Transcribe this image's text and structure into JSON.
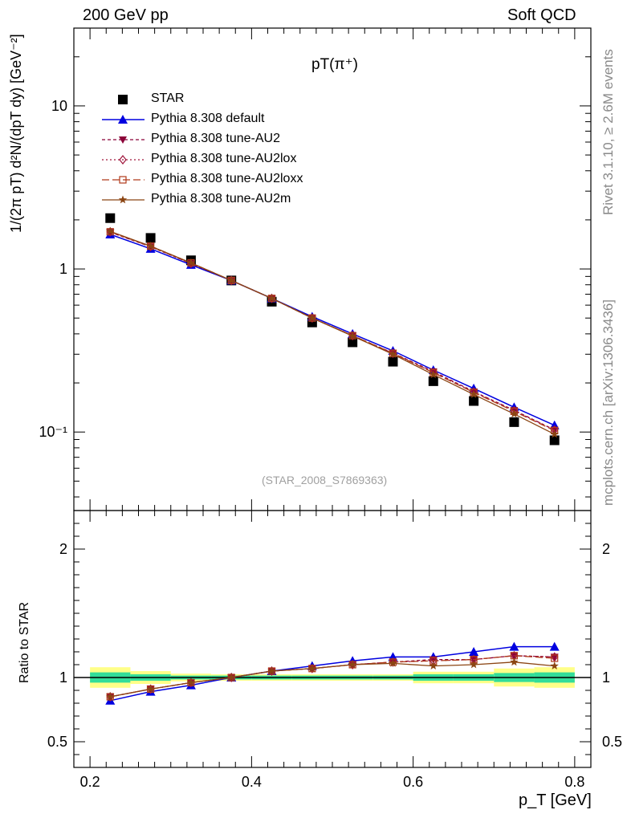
{
  "header": {
    "left": "200 GeV pp",
    "right": "Soft QCD"
  },
  "side_text": {
    "rivet": "Rivet 3.1.10, ≥ 2.6M events",
    "mcplots": "mcplots.cern.ch [arXiv:1306.3436]"
  },
  "plot_title": "pT(π⁺)",
  "watermark": "(STAR_2008_S7869363)",
  "ylabel_main": "1/(2π pT) d²N/(dpT dy) [GeV⁻²]",
  "ylabel_ratio": "Ratio to STAR",
  "xlabel": "p_T [GeV]",
  "colors": {
    "star": "#000000",
    "default": "#0000e0",
    "au2": "#8b0038",
    "au2lox": "#a0163c",
    "au2loxx": "#b03a1a",
    "au2m": "#8b4513",
    "band_inner": "#33dd99",
    "band_outer": "#ffff88"
  },
  "chart_data": [
    {
      "type": "line",
      "panel": "main",
      "y_scale": "log",
      "xlim": [
        0.18,
        0.82
      ],
      "ylim": [
        0.033,
        30
      ],
      "x_ticks": [
        0.2,
        0.4,
        0.6,
        0.8
      ],
      "y_ticks": [
        "10⁻¹",
        "1",
        "10"
      ],
      "legend_placement": "top-left",
      "x": [
        0.225,
        0.275,
        0.325,
        0.375,
        0.425,
        0.475,
        0.525,
        0.575,
        0.625,
        0.675,
        0.725,
        0.775
      ],
      "series": [
        {
          "name": "STAR",
          "marker": "square",
          "values": [
            2.05,
            1.55,
            1.13,
            0.85,
            0.63,
            0.47,
            0.355,
            0.27,
            0.205,
            0.155,
            0.115,
            0.089
          ],
          "errors": [
            0.08,
            0.06,
            0.04,
            0.03,
            0.02,
            0.015,
            0.012,
            0.01,
            0.008,
            0.007,
            0.006,
            0.005
          ]
        },
        {
          "name": "Pythia 8.308 default",
          "marker": "triangle-up",
          "values": [
            1.63,
            1.33,
            1.06,
            0.85,
            0.66,
            0.51,
            0.4,
            0.315,
            0.24,
            0.185,
            0.142,
            0.11
          ]
        },
        {
          "name": "Pythia 8.308 tune-AU2",
          "marker": "triangle-down",
          "values": [
            1.68,
            1.37,
            1.08,
            0.85,
            0.66,
            0.5,
            0.39,
            0.305,
            0.235,
            0.177,
            0.136,
            0.103
          ]
        },
        {
          "name": "Pythia 8.308 tune-AU2lox",
          "marker": "diamond",
          "values": [
            1.69,
            1.37,
            1.08,
            0.85,
            0.66,
            0.5,
            0.39,
            0.304,
            0.232,
            0.176,
            0.135,
            0.103
          ]
        },
        {
          "name": "Pythia 8.308 tune-AU2loxx",
          "marker": "open-square",
          "values": [
            1.69,
            1.38,
            1.09,
            0.85,
            0.66,
            0.5,
            0.39,
            0.304,
            0.231,
            0.175,
            0.134,
            0.102
          ]
        },
        {
          "name": "Pythia 8.308 tune-AU2m",
          "marker": "star",
          "values": [
            1.7,
            1.38,
            1.09,
            0.85,
            0.66,
            0.5,
            0.388,
            0.3,
            0.225,
            0.17,
            0.129,
            0.097
          ]
        }
      ]
    },
    {
      "type": "line",
      "panel": "ratio",
      "xlim": [
        0.18,
        0.82
      ],
      "ylim": [
        0.3,
        2.3
      ],
      "x_ticks": [
        0.2,
        0.4,
        0.6,
        0.8
      ],
      "y_ticks": [
        0.5,
        1,
        2
      ],
      "x": [
        0.225,
        0.275,
        0.325,
        0.375,
        0.425,
        0.475,
        0.525,
        0.575,
        0.625,
        0.675,
        0.725,
        0.775
      ],
      "band": {
        "edges": [
          0.2,
          0.25,
          0.3,
          0.35,
          0.4,
          0.45,
          0.5,
          0.55,
          0.6,
          0.65,
          0.7,
          0.75,
          0.8
        ],
        "inner": [
          0.04,
          0.025,
          0.015,
          0.015,
          0.015,
          0.015,
          0.015,
          0.015,
          0.025,
          0.025,
          0.035,
          0.04
        ],
        "outer": [
          0.08,
          0.05,
          0.03,
          0.025,
          0.025,
          0.025,
          0.025,
          0.025,
          0.045,
          0.045,
          0.07,
          0.08
        ]
      },
      "series": [
        {
          "name": "Pythia 8.308 default",
          "marker": "triangle-up",
          "values": [
            0.82,
            0.89,
            0.94,
            1.0,
            1.05,
            1.09,
            1.13,
            1.16,
            1.16,
            1.2,
            1.24,
            1.24
          ]
        },
        {
          "name": "Pythia 8.308 tune-AU2",
          "marker": "triangle-down",
          "values": [
            0.85,
            0.91,
            0.96,
            1.0,
            1.05,
            1.07,
            1.1,
            1.12,
            1.14,
            1.14,
            1.17,
            1.16
          ]
        },
        {
          "name": "Pythia 8.308 tune-AU2lox",
          "marker": "diamond",
          "values": [
            0.85,
            0.91,
            0.96,
            1.0,
            1.05,
            1.07,
            1.1,
            1.12,
            1.13,
            1.14,
            1.17,
            1.16
          ]
        },
        {
          "name": "Pythia 8.308 tune-AU2loxx",
          "marker": "open-square",
          "values": [
            0.85,
            0.91,
            0.96,
            1.0,
            1.05,
            1.07,
            1.1,
            1.12,
            1.13,
            1.14,
            1.17,
            1.15
          ]
        },
        {
          "name": "Pythia 8.308 tune-AU2m",
          "marker": "star",
          "values": [
            0.85,
            0.91,
            0.96,
            1.0,
            1.05,
            1.07,
            1.1,
            1.11,
            1.09,
            1.1,
            1.12,
            1.09
          ]
        }
      ]
    }
  ]
}
